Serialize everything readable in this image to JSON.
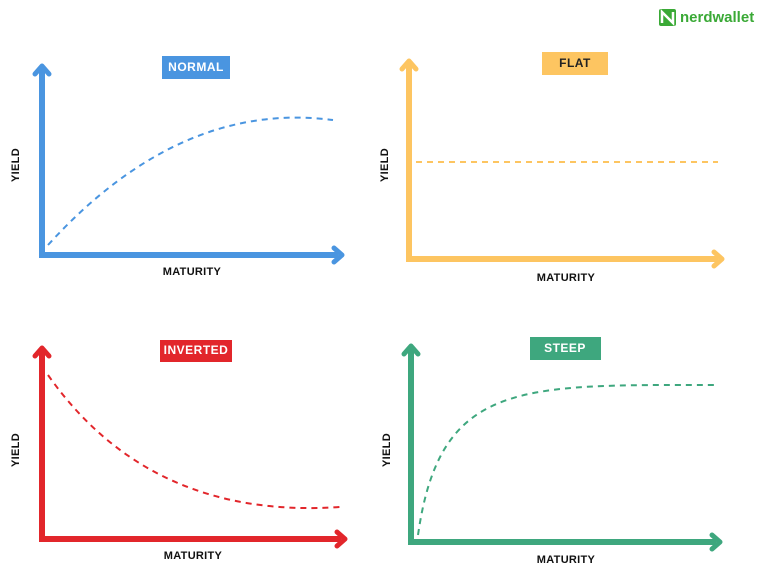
{
  "brand": "nerdwallet",
  "panels": [
    {
      "title": "NORMAL",
      "y_label": "YIELD",
      "x_label": "MATURITY"
    },
    {
      "title": "FLAT",
      "y_label": "YIELD",
      "x_label": "MATURITY"
    },
    {
      "title": "INVERTED",
      "y_label": "YIELD",
      "x_label": "MATURITY"
    },
    {
      "title": "STEEP",
      "y_label": "YIELD",
      "x_label": "MATURITY"
    }
  ]
}
